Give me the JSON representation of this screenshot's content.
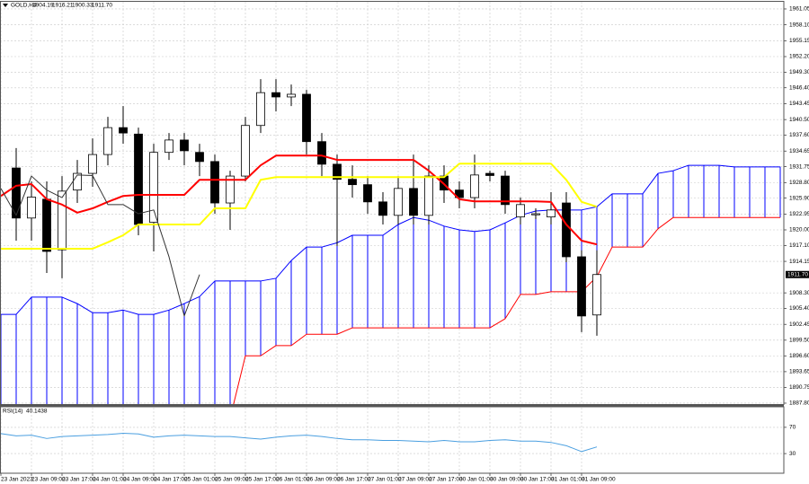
{
  "chart_data": [
    {
      "type": "candlestick",
      "info": {
        "symbol": "GOLD,H4",
        "values": [
          "1904.19",
          "1916.21",
          "1900.33",
          "1911.70"
        ]
      },
      "categories": [
        "23 Jan 2023",
        null,
        "23 Jan 09:00",
        null,
        "23 Jan 17:00",
        null,
        "24 Jan 01:00",
        null,
        "24 Jan 09:00",
        null,
        "24 Jan 17:00",
        null,
        "25 Jan 01:00",
        null,
        "25 Jan 09:00",
        null,
        "25 Jan 17:00",
        null,
        "26 Jan 01:00",
        null,
        "26 Jan 09:00",
        null,
        "26 Jan 17:00",
        null,
        "27 Jan 01:00",
        null,
        "27 Jan 09:00",
        null,
        "27 Jan 17:00",
        null,
        "30 Jan 01:00",
        null,
        "30 Jan 09:00",
        null,
        "30 Jan 17:00",
        null,
        "31 Jan 01:00",
        null,
        "31 Jan 09:00",
        null,
        null,
        null,
        null,
        null,
        null,
        null,
        null,
        null,
        null,
        null,
        null,
        null
      ],
      "open": [
        null,
        1931.5,
        1922.2,
        1925.7,
        1916.3,
        1927.4,
        1930.5,
        1934.0,
        1939.0,
        1937.8,
        1921.4,
        1934.4,
        1936.7,
        1934.4,
        1932.7,
        1925.0,
        1930.0,
        1939.4,
        1945.5,
        1944.7,
        1945.2,
        1936.4,
        1932.2,
        1929.4,
        1928.4,
        1925.2,
        1922.7,
        1927.7,
        1922.7,
        1930.0,
        1927.4,
        1926.0,
        1930.5,
        1930.0,
        1922.4,
        1922.8,
        1922.4,
        1925.0,
        1915.0,
        1904.19,
        null,
        null,
        null,
        null,
        null,
        null,
        null,
        null,
        null,
        null,
        null,
        null
      ],
      "high": [
        null,
        1935.2,
        1929.0,
        1929.0,
        1930.0,
        1933.0,
        1937.0,
        1941.0,
        1943.0,
        1939.0,
        1936.0,
        1938.0,
        1938.0,
        1936.0,
        1934.0,
        1931.0,
        1941.0,
        1948.0,
        1948.0,
        1947.0,
        1946.0,
        1938.0,
        1934.0,
        1932.0,
        1930.0,
        1927.0,
        1930.0,
        1934.0,
        1932.0,
        1932.0,
        1929.0,
        1934.0,
        1931.0,
        1931.0,
        1926.0,
        1924.0,
        1927.0,
        1927.0,
        1916.2,
        1916.21,
        null,
        null,
        null,
        null,
        null,
        null,
        null,
        null,
        null,
        null,
        null,
        null
      ],
      "low": [
        null,
        1918.0,
        1918.0,
        1912.0,
        1911.0,
        1925.0,
        1928.0,
        1932.0,
        1936.0,
        1919.0,
        1916.0,
        1933.0,
        1932.0,
        1930.0,
        1923.0,
        1920.0,
        1929.0,
        1938.0,
        1942.0,
        1943.0,
        1934.0,
        1930.0,
        1917.0,
        1926.0,
        1923.0,
        1921.0,
        1921.0,
        1921.0,
        1921.0,
        1925.0,
        1924.0,
        1924.0,
        1929.0,
        1923.0,
        1921.0,
        1922.0,
        1921.0,
        1914.0,
        1901.0,
        1900.33,
        null,
        null,
        null,
        null,
        null,
        null,
        null,
        null,
        null,
        null,
        null,
        null
      ],
      "close": [
        null,
        1922.2,
        1926.1,
        1916.0,
        1927.2,
        1930.5,
        1934.0,
        1939.0,
        1938.0,
        1921.0,
        1934.4,
        1936.7,
        1934.7,
        1932.7,
        1925.0,
        1930.0,
        1939.4,
        1945.5,
        1944.7,
        1945.2,
        1936.4,
        1932.2,
        1929.4,
        1928.4,
        1925.2,
        1922.7,
        1927.7,
        1922.7,
        1930.0,
        1927.4,
        1926.0,
        1930.2,
        1930.1,
        1924.7,
        1924.7,
        1923.0,
        1923.7,
        1915.0,
        1904.0,
        1911.7,
        null,
        null,
        null,
        null,
        null,
        null,
        null,
        null,
        null,
        null,
        null,
        null
      ],
      "series": [
        {
          "color": "#0000ff",
          "width": 1,
          "values": [
            1904.3,
            1904.3,
            1907.5,
            1907.5,
            1907.5,
            1906.3,
            1904.6,
            1904.6,
            1905.1,
            1904.3,
            1904.3,
            1905.1,
            1906.3,
            1907.6,
            1910.5,
            1910.5,
            1910.5,
            1910.5,
            1911.0,
            1914.3,
            1916.8,
            1916.8,
            1917.6,
            1919.0,
            1919.0,
            1919.0,
            1921.0,
            1922.3,
            1921.8,
            1920.7,
            1920.0,
            1919.7,
            1920.0,
            1921.3,
            1922.7,
            1923.5,
            1923.7,
            1923.7,
            1923.7,
            1924.3,
            1926.7,
            1926.7,
            1926.7,
            1930.5,
            1931.0,
            1932.0,
            1932.0,
            1932.0,
            1931.7,
            1931.7,
            1931.7,
            1931.7
          ]
        },
        {
          "color": "#ff0000",
          "width": 1,
          "values": [
            1885.0,
            1885.0,
            1885.0,
            1885.0,
            1885.0,
            1885.0,
            1885.0,
            1885.0,
            1885.0,
            1885.0,
            1885.0,
            1885.0,
            1885.0,
            1885.0,
            1885.0,
            1885.0,
            1896.6,
            1896.6,
            1898.5,
            1898.5,
            1900.6,
            1900.6,
            1900.6,
            1901.8,
            1901.8,
            1901.8,
            1901.8,
            1901.8,
            1901.8,
            1901.8,
            1901.8,
            1901.8,
            1901.8,
            1903.5,
            1908.0,
            1908.0,
            1908.5,
            1908.5,
            1908.5,
            1911.3,
            1916.8,
            1916.8,
            1916.8,
            1920.2,
            1922.3,
            1922.3,
            1922.3,
            1922.3,
            1922.3,
            1922.3,
            1922.3,
            1922.3
          ]
        },
        {
          "color": "#ff0000",
          "width": 2,
          "values": [
            1926.3,
            1928.2,
            1928.5,
            1925.7,
            1924.7,
            1923.2,
            1924.0,
            1925.2,
            1926.3,
            1926.5,
            1926.5,
            1926.5,
            1926.5,
            1929.3,
            1929.3,
            1929.3,
            1929.3,
            1932.0,
            1933.8,
            1933.8,
            1933.8,
            1933.8,
            1933.0,
            1933.0,
            1933.0,
            1933.0,
            1933.0,
            1933.0,
            1931.0,
            1928.5,
            1925.7,
            1925.3,
            1925.3,
            1925.3,
            1925.3,
            1925.3,
            1925.2,
            1921.0,
            1918.0,
            1917.3,
            null,
            null,
            null,
            null,
            null,
            null,
            null,
            null,
            null,
            null,
            null,
            null
          ]
        },
        {
          "color": "#ffff00",
          "width": 2,
          "values": [
            1916.5,
            1916.5,
            1916.5,
            1916.5,
            1916.5,
            1916.5,
            1916.5,
            1917.7,
            1919.0,
            1921.0,
            1921.0,
            1921.0,
            1921.0,
            1921.0,
            1924.0,
            1924.0,
            1924.0,
            1929.3,
            1929.8,
            1929.8,
            1929.8,
            1929.8,
            1929.8,
            1929.8,
            1929.8,
            1929.8,
            1929.8,
            1929.8,
            1929.8,
            1929.8,
            1932.3,
            1932.3,
            1932.3,
            1932.3,
            1932.3,
            1932.3,
            1932.3,
            1929.3,
            1925.2,
            1924.3,
            null,
            null,
            null,
            null,
            null,
            null,
            null,
            null,
            null,
            null,
            null,
            null
          ]
        },
        {
          "color": "#333333",
          "width": 1,
          "values": [
            1927.7,
            1922.7,
            1930.0,
            1927.4,
            1926.0,
            1930.2,
            1930.1,
            1924.7,
            1924.7,
            1923.0,
            1923.7,
            1915.0,
            1904.0,
            1911.7,
            null,
            null,
            null,
            null,
            null,
            null,
            null,
            null,
            null,
            null,
            null,
            null,
            null,
            null,
            null,
            null,
            null,
            null,
            null,
            null,
            null,
            null,
            null,
            null,
            null,
            null,
            null,
            null,
            null,
            null,
            null,
            null,
            null,
            null,
            null,
            null,
            null,
            null
          ]
        }
      ],
      "ylim": [
        1887.63,
        1962.38
      ],
      "yticks": [
        1961.05,
        {
          "value": 1958.1,
          "label": "1958.10"
        },
        1955.15,
        {
          "value": 1952.2,
          "label": "1952.20"
        },
        {
          "value": 1949.3,
          "label": "1949.30"
        },
        {
          "value": 1946.4,
          "label": "1946.40"
        },
        1943.45,
        {
          "value": 1940.5,
          "label": "1940.50"
        },
        {
          "value": 1937.6,
          "label": "1937.60"
        },
        1934.65,
        1931.75,
        {
          "value": 1928.8,
          "label": "1928.80"
        },
        {
          "value": 1925.9,
          "label": "1925.90"
        },
        1922.95,
        {
          "value": 1920,
          "label": "1920.00"
        },
        {
          "value": 1917.1,
          "label": "1917.10"
        },
        1914.15,
        {
          "value": 1908.3,
          "label": "1908.30"
        },
        {
          "value": 1905.4,
          "label": "1905.40"
        },
        1902.45,
        {
          "value": 1899.5,
          "label": "1899.50"
        },
        {
          "value": 1896.6,
          "label": "1896.60"
        },
        1893.65,
        1890.75,
        {
          "value": 1887.8,
          "label": "1887.80"
        }
      ],
      "price_label": {
        "value": 1911.7,
        "label": "1911.70"
      },
      "grid": true
    },
    {
      "type": "line",
      "title": "RSI(14)",
      "series": [
        {
          "color": "#4a9fe0",
          "values": [
            60.5,
            57,
            58,
            53,
            56,
            57,
            58,
            59,
            61,
            60,
            55,
            57,
            58,
            57,
            56,
            56,
            54,
            52,
            55,
            57,
            58,
            56,
            53,
            51,
            51,
            50,
            50,
            49,
            48,
            50,
            48,
            48,
            50,
            51,
            49,
            49,
            47,
            42,
            33,
            40.1438
          ]
        }
      ],
      "ylim": [
        0,
        100
      ],
      "yticks": [
        70,
        30
      ],
      "grid": true
    }
  ]
}
